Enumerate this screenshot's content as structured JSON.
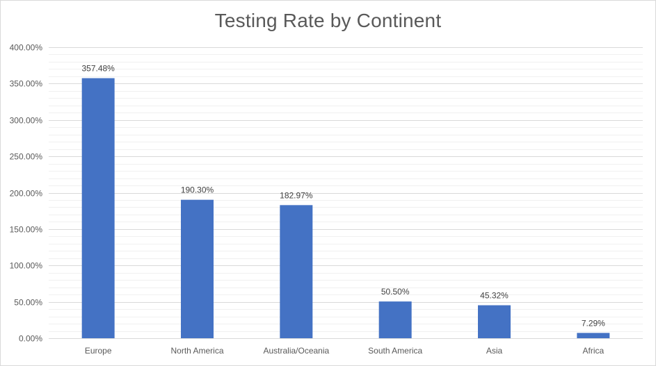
{
  "chart_data": {
    "type": "bar",
    "title": "Testing Rate by Continent",
    "xlabel": "",
    "ylabel": "",
    "categories": [
      "Europe",
      "North America",
      "Australia/Oceania",
      "South America",
      "Asia",
      "Africa"
    ],
    "values": [
      357.48,
      190.3,
      182.97,
      50.5,
      45.32,
      7.29
    ],
    "data_labels": [
      "357.48%",
      "190.30%",
      "182.97%",
      "50.50%",
      "45.32%",
      "7.29%"
    ],
    "ylim": [
      0,
      400
    ],
    "y_ticks": [
      0,
      50,
      100,
      150,
      200,
      250,
      300,
      350,
      400
    ],
    "y_tick_labels": [
      "0.00%",
      "50.00%",
      "100.00%",
      "150.00%",
      "200.00%",
      "250.00%",
      "300.00%",
      "350.00%",
      "400.00%"
    ],
    "grid": "on",
    "legend": "none",
    "colors": {
      "bar": "#4472c4",
      "major_grid": "#d9d9d9",
      "minor_grid": "#f0f0f0",
      "text": "#595959"
    }
  }
}
